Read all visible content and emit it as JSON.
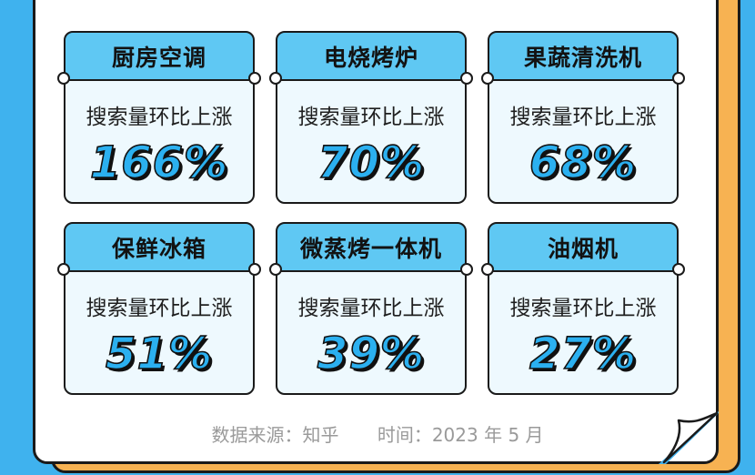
{
  "cards": [
    {
      "title": "厨房空调",
      "subtitle": "搜索量环比上涨",
      "value": "166%"
    },
    {
      "title": "电烧烤炉",
      "subtitle": "搜索量环比上涨",
      "value": "70%"
    },
    {
      "title": "果蔬清洗机",
      "subtitle": "搜索量环比上涨",
      "value": "68%"
    },
    {
      "title": "保鲜冰箱",
      "subtitle": "搜索量环比上涨",
      "value": "51%"
    },
    {
      "title": "微蒸烤一体机",
      "subtitle": "搜索量环比上涨",
      "value": "39%"
    },
    {
      "title": "油烟机",
      "subtitle": "搜索量环比上涨",
      "value": "27%"
    }
  ],
  "footer": {
    "source": "数据来源：知乎",
    "time": "时间：2023 年 5 月"
  },
  "colors": {
    "background": "#3fb2ee",
    "paper_shadow": "#f7b252",
    "header": "#5fc8f3",
    "body": "#eef9fe",
    "value": "#2bb0f0"
  }
}
